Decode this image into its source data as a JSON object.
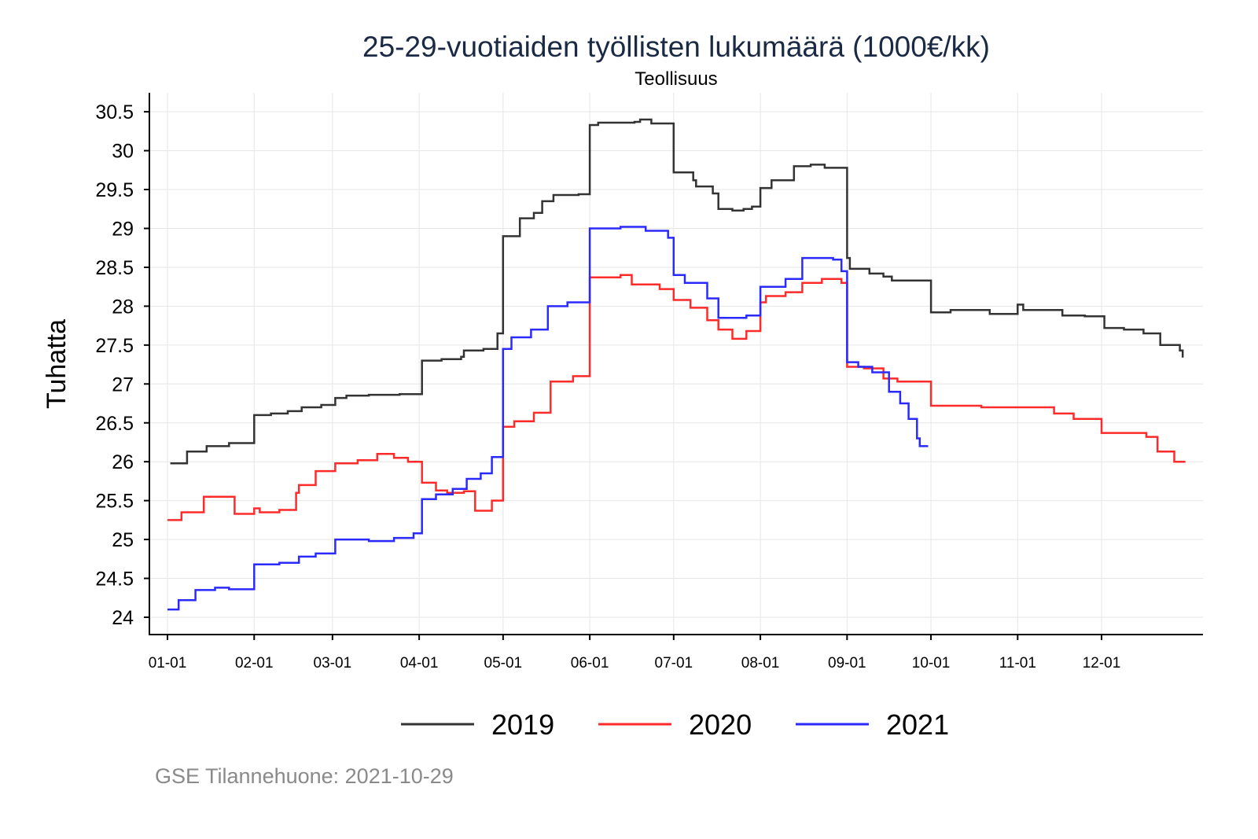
{
  "chart_data": {
    "type": "line",
    "title": "25-29-vuotiaiden työllisten lukumäärä (1000€/kk)",
    "subtitle": "Teollisuus",
    "xlabel": "",
    "ylabel": "Tuhatta",
    "x_unit": "day of year",
    "xlim": [
      0,
      364
    ],
    "ylim": [
      23.9,
      30.75
    ],
    "grid": true,
    "legend_position": "bottom",
    "caption": "GSE Tilannehuone: 2021-10-29",
    "y_ticks": [
      24,
      24.5,
      25,
      25.5,
      26,
      26.5,
      27,
      27.5,
      28,
      28.5,
      29,
      29.5,
      30,
      30.5
    ],
    "y_tick_labels": [
      "24",
      "24.5",
      "25",
      "25.5",
      "26",
      "26.5",
      "27",
      "27.5",
      "28",
      "28.5",
      "29",
      "29.5",
      "30",
      "30.5"
    ],
    "x_ticks": [
      0,
      31,
      59,
      90,
      120,
      151,
      181,
      212,
      243,
      273,
      304,
      334
    ],
    "x_tick_labels": [
      "01-01",
      "02-01",
      "03-01",
      "04-01",
      "05-01",
      "06-01",
      "07-01",
      "08-01",
      "09-01",
      "10-01",
      "11-01",
      "12-01"
    ],
    "series": [
      {
        "name": "2019",
        "color": "#333333",
        "points": [
          [
            1,
            25.98
          ],
          [
            7,
            26.13
          ],
          [
            14,
            26.2
          ],
          [
            22,
            26.24
          ],
          [
            31,
            26.6
          ],
          [
            37,
            26.62
          ],
          [
            43,
            26.65
          ],
          [
            48,
            26.7
          ],
          [
            55,
            26.73
          ],
          [
            60,
            26.82
          ],
          [
            64,
            26.85
          ],
          [
            72,
            26.86
          ],
          [
            83,
            26.87
          ],
          [
            91,
            27.3
          ],
          [
            98,
            27.32
          ],
          [
            105,
            27.35
          ],
          [
            106,
            27.43
          ],
          [
            113,
            27.45
          ],
          [
            118,
            27.65
          ],
          [
            120,
            28.9
          ],
          [
            126,
            29.13
          ],
          [
            131,
            29.2
          ],
          [
            134,
            29.35
          ],
          [
            138,
            29.43
          ],
          [
            147,
            29.44
          ],
          [
            151,
            30.33
          ],
          [
            154,
            30.36
          ],
          [
            167,
            30.37
          ],
          [
            169,
            30.4
          ],
          [
            173,
            30.35
          ],
          [
            181,
            29.72
          ],
          [
            188,
            29.62
          ],
          [
            189,
            29.54
          ],
          [
            195,
            29.45
          ],
          [
            197,
            29.25
          ],
          [
            202,
            29.23
          ],
          [
            206,
            29.25
          ],
          [
            209,
            29.28
          ],
          [
            212,
            29.52
          ],
          [
            216,
            29.62
          ],
          [
            224,
            29.8
          ],
          [
            230,
            29.82
          ],
          [
            235,
            29.78
          ],
          [
            243,
            28.62
          ],
          [
            244,
            28.48
          ],
          [
            251,
            28.42
          ],
          [
            256,
            28.38
          ],
          [
            259,
            28.33
          ],
          [
            273,
            27.92
          ],
          [
            280,
            27.95
          ],
          [
            294,
            27.9
          ],
          [
            304,
            28.02
          ],
          [
            306,
            27.95
          ],
          [
            320,
            27.88
          ],
          [
            328,
            27.87
          ],
          [
            335,
            27.72
          ],
          [
            342,
            27.7
          ],
          [
            349,
            27.65
          ],
          [
            355,
            27.5
          ],
          [
            362,
            27.43
          ],
          [
            363,
            27.34
          ]
        ]
      },
      {
        "name": "2020",
        "color": "#ff2a2a",
        "points": [
          [
            0,
            25.25
          ],
          [
            5,
            25.35
          ],
          [
            13,
            25.55
          ],
          [
            24,
            25.33
          ],
          [
            31,
            25.4
          ],
          [
            33,
            25.35
          ],
          [
            40,
            25.38
          ],
          [
            46,
            25.6
          ],
          [
            47,
            25.7
          ],
          [
            53,
            25.88
          ],
          [
            60,
            25.98
          ],
          [
            68,
            26.02
          ],
          [
            75,
            26.1
          ],
          [
            81,
            26.05
          ],
          [
            86,
            26.0
          ],
          [
            91,
            25.73
          ],
          [
            96,
            25.63
          ],
          [
            100,
            25.6
          ],
          [
            106,
            25.62
          ],
          [
            110,
            25.37
          ],
          [
            116,
            25.5
          ],
          [
            120,
            26.45
          ],
          [
            124,
            26.52
          ],
          [
            131,
            26.63
          ],
          [
            137,
            27.03
          ],
          [
            145,
            27.1
          ],
          [
            151,
            28.37
          ],
          [
            162,
            28.4
          ],
          [
            166,
            28.28
          ],
          [
            176,
            28.22
          ],
          [
            181,
            28.08
          ],
          [
            187,
            27.98
          ],
          [
            193,
            27.82
          ],
          [
            197,
            27.7
          ],
          [
            202,
            27.58
          ],
          [
            207,
            27.68
          ],
          [
            212,
            28.05
          ],
          [
            214,
            28.13
          ],
          [
            221,
            28.18
          ],
          [
            227,
            28.3
          ],
          [
            234,
            28.35
          ],
          [
            241,
            28.3
          ],
          [
            243,
            27.22
          ],
          [
            249,
            27.2
          ],
          [
            256,
            27.07
          ],
          [
            261,
            27.03
          ],
          [
            273,
            26.72
          ],
          [
            291,
            26.7
          ],
          [
            317,
            26.62
          ],
          [
            324,
            26.55
          ],
          [
            334,
            26.37
          ],
          [
            350,
            26.32
          ],
          [
            354,
            26.13
          ],
          [
            360,
            26.0
          ],
          [
            364,
            26.0
          ]
        ]
      },
      {
        "name": "2021",
        "color": "#2a2aff",
        "points": [
          [
            0,
            24.1
          ],
          [
            4,
            24.22
          ],
          [
            10,
            24.35
          ],
          [
            17,
            24.38
          ],
          [
            22,
            24.36
          ],
          [
            31,
            24.68
          ],
          [
            40,
            24.7
          ],
          [
            47,
            24.78
          ],
          [
            53,
            24.82
          ],
          [
            60,
            25.0
          ],
          [
            72,
            24.98
          ],
          [
            81,
            25.02
          ],
          [
            88,
            25.08
          ],
          [
            91,
            25.52
          ],
          [
            96,
            25.58
          ],
          [
            102,
            25.65
          ],
          [
            107,
            25.78
          ],
          [
            112,
            25.85
          ],
          [
            116,
            26.06
          ],
          [
            120,
            27.45
          ],
          [
            123,
            27.6
          ],
          [
            130,
            27.7
          ],
          [
            136,
            28.0
          ],
          [
            143,
            28.05
          ],
          [
            151,
            29.0
          ],
          [
            162,
            29.02
          ],
          [
            171,
            28.97
          ],
          [
            179,
            28.88
          ],
          [
            181,
            28.4
          ],
          [
            185,
            28.3
          ],
          [
            193,
            28.1
          ],
          [
            197,
            27.85
          ],
          [
            207,
            27.88
          ],
          [
            212,
            28.25
          ],
          [
            221,
            28.35
          ],
          [
            227,
            28.62
          ],
          [
            238,
            28.6
          ],
          [
            241,
            28.45
          ],
          [
            243,
            27.28
          ],
          [
            247,
            27.22
          ],
          [
            252,
            27.15
          ],
          [
            258,
            26.9
          ],
          [
            262,
            26.75
          ],
          [
            265,
            26.55
          ],
          [
            268,
            26.3
          ],
          [
            269,
            26.2
          ],
          [
            272,
            26.2
          ]
        ]
      }
    ]
  }
}
